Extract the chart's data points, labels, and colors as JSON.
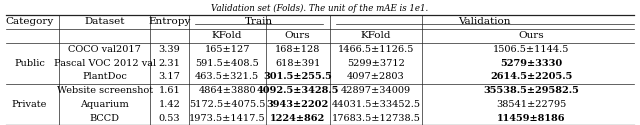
{
  "title": "Validation set (Folds). The unit of the mAE is 1e1.",
  "rows": [
    {
      "category": "Public",
      "dataset": "COCO val2017",
      "entropy": "3.39",
      "train_kfold": "165±127",
      "train_ours": "168±128",
      "val_kfold": "1466.5±1126.5",
      "val_ours": "1506.5±1144.5"
    },
    {
      "category": "",
      "dataset": "Pascal VOC 2012 val",
      "entropy": "2.31",
      "train_kfold": "591.5±408.5",
      "train_ours": "618±391",
      "val_kfold": "5299±3712",
      "val_ours": "5279±3330"
    },
    {
      "category": "",
      "dataset": "PlantDoc",
      "entropy": "3.17",
      "train_kfold": "463.5±321.5",
      "train_ours": "301.5±255.5",
      "val_kfold": "4097±2803",
      "val_ours": "2614.5±2205.5"
    },
    {
      "category": "Private",
      "dataset": "Website screenshot",
      "entropy": "1.61",
      "train_kfold": "4864±3880",
      "train_ours": "4092.5±3428.5",
      "val_kfold": "42897±34009",
      "val_ours": "35538.5±29582.5"
    },
    {
      "category": "",
      "dataset": "Aquarium",
      "entropy": "1.42",
      "train_kfold": "5172.5±4075.5",
      "train_ours": "3943±2202",
      "val_kfold": "44031.5±33452.5",
      "val_ours": "38541±22795"
    },
    {
      "category": "",
      "dataset": "BCCD",
      "entropy": "0.53",
      "train_kfold": "1973.5±1417.5",
      "train_ours": "1224±862",
      "val_kfold": "17683.5±12738.5",
      "val_ours": "11459±8186"
    }
  ],
  "bold_ours_train": [
    false,
    false,
    true,
    true,
    true,
    true
  ],
  "bold_ours_val": [
    false,
    true,
    true,
    true,
    false,
    true
  ],
  "background_color": "#ffffff",
  "line_color": "#222222",
  "font_size": 7.0,
  "header_font_size": 7.5,
  "title_font_size": 6.2
}
